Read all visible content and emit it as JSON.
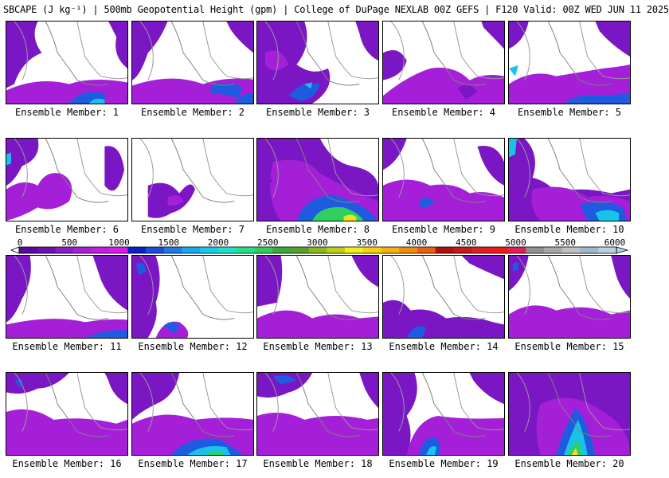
{
  "title": "SBCAPE (J kg⁻¹) | 500mb Geopotential Height (gpm) | College of DuPage NEXLAB 00Z GEFS | F120 Valid: 00Z WED JUN 11 2025",
  "colorbar": {
    "tick_labels": [
      "0",
      "500",
      "1000",
      "1500",
      "2000",
      "2500",
      "3000",
      "3500",
      "4000",
      "4500",
      "5000",
      "5500",
      "6000"
    ],
    "colors": [
      "#5a0a9e",
      "#6e10b0",
      "#8a1bc6",
      "#a81fd8",
      "#c21de6",
      "#d81bf0",
      "#0a1fd0",
      "#1a4cdc",
      "#1f79e6",
      "#17a8ee",
      "#17cbe8",
      "#1ee0c8",
      "#20e08c",
      "#32cc5a",
      "#3aa83a",
      "#5aa02a",
      "#8ab820",
      "#b8d018",
      "#f0f018",
      "#f8d010",
      "#f8b010",
      "#f08a10",
      "#e86010",
      "#b01010",
      "#c81818",
      "#e02020",
      "#f01818",
      "#e02050",
      "#909090",
      "#a8a8a8",
      "#c0c0c0",
      "#a0b8c8",
      "#b8d0e0"
    ]
  },
  "members": [
    {
      "label": "Ensemble Member: 1"
    },
    {
      "label": "Ensemble Member: 2"
    },
    {
      "label": "Ensemble Member: 3"
    },
    {
      "label": "Ensemble Member: 4"
    },
    {
      "label": "Ensemble Member: 5"
    },
    {
      "label": "Ensemble Member: 6"
    },
    {
      "label": "Ensemble Member: 7"
    },
    {
      "label": "Ensemble Member: 8"
    },
    {
      "label": "Ensemble Member: 9"
    },
    {
      "label": "Ensemble Member: 10"
    },
    {
      "label": "Ensemble Member: 11"
    },
    {
      "label": "Ensemble Member: 12"
    },
    {
      "label": "Ensemble Member: 13"
    },
    {
      "label": "Ensemble Member: 14"
    },
    {
      "label": "Ensemble Member: 15"
    },
    {
      "label": "Ensemble Member: 16"
    },
    {
      "label": "Ensemble Member: 17"
    },
    {
      "label": "Ensemble Member: 18"
    },
    {
      "label": "Ensemble Member: 19"
    },
    {
      "label": "Ensemble Member: 20"
    }
  ]
}
